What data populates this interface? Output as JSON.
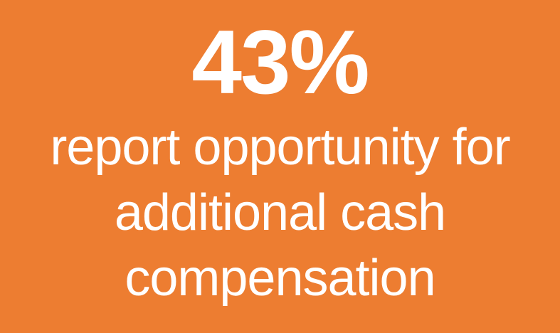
{
  "slide": {
    "background_color": "#ED7D31",
    "text_color": "#FFFFFF",
    "stat_value": "43%",
    "stat_description": "report opportunity for additional cash compensation"
  }
}
